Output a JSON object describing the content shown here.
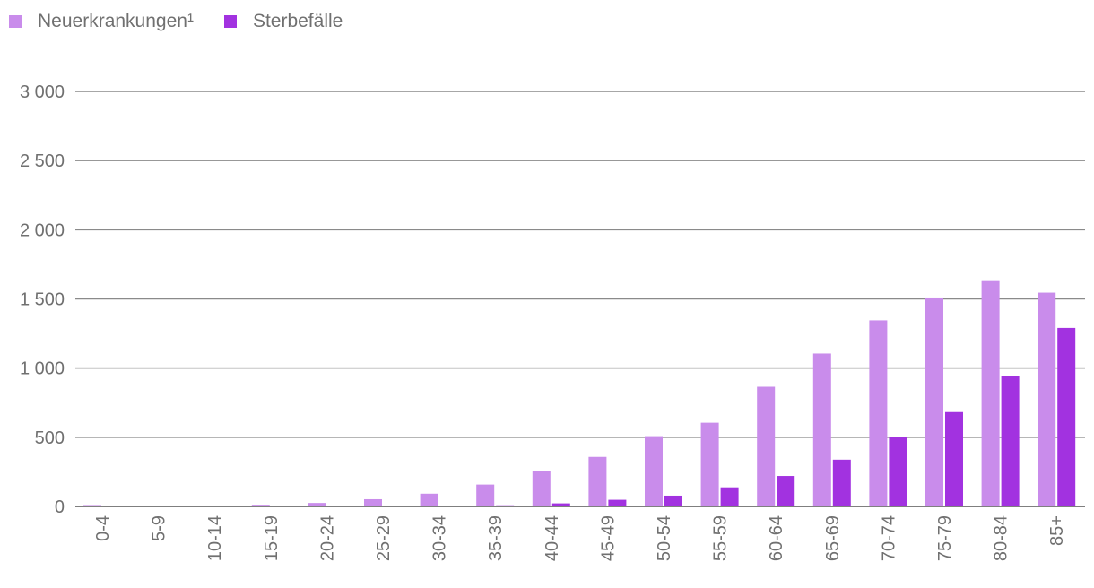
{
  "chart_data": {
    "type": "bar",
    "categories": [
      "0-4",
      "5-9",
      "10-14",
      "15-19",
      "20-24",
      "25-29",
      "30-34",
      "35-39",
      "40-44",
      "45-49",
      "50-54",
      "55-59",
      "60-64",
      "65-69",
      "70-74",
      "75-79",
      "80-84",
      "85+"
    ],
    "series": [
      {
        "name": "Neuerkrankungen¹",
        "color": "#c98ceb",
        "values": [
          10,
          3,
          5,
          12,
          25,
          52,
          92,
          158,
          253,
          358,
          508,
          605,
          865,
          1105,
          1345,
          1510,
          1635,
          1545
        ]
      },
      {
        "name": "Sterbefälle",
        "color": "#a232e0",
        "values": [
          0,
          0,
          0,
          1,
          1,
          2,
          4,
          8,
          22,
          48,
          78,
          138,
          220,
          338,
          505,
          682,
          940,
          1290
        ]
      }
    ],
    "ylim": [
      0,
      3000
    ],
    "y_ticks": [
      0,
      500,
      1000,
      1500,
      2000,
      2500,
      3000
    ],
    "y_tick_labels": [
      "0",
      "500",
      "1 000",
      "1 500",
      "2 000",
      "2 500",
      "3 000"
    ],
    "grid": true,
    "legend_position": "top-left"
  }
}
